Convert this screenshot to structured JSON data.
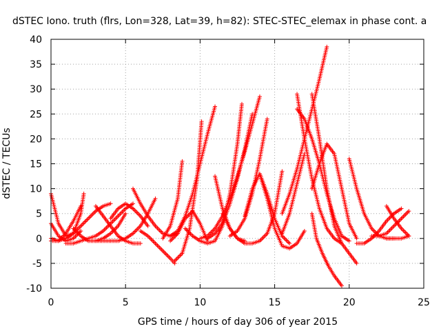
{
  "chart_data": {
    "type": "scatter",
    "title": "dSTEC Iono. truth (flrs, Lon=328, Lat=39, h=82): STEC-STEC_elemax in phase cont. a",
    "xlabel": "GPS time / hours of day 306 of year 2015",
    "ylabel": "dSTEC  / TECUs",
    "xlim": [
      0,
      25
    ],
    "ylim": [
      -10,
      40
    ],
    "xticks": [
      0,
      5,
      10,
      15,
      20,
      25
    ],
    "yticks": [
      -10,
      -5,
      0,
      5,
      10,
      15,
      20,
      25,
      30,
      35,
      40
    ],
    "grid": true,
    "marker": "+",
    "color": "#ff0000",
    "series": [
      {
        "x": [
          0.0,
          0.5,
          1.0,
          1.5,
          2.0,
          2.2
        ],
        "y": [
          9.0,
          3.0,
          0.5,
          1.0,
          5.0,
          9.0
        ]
      },
      {
        "x": [
          0.0,
          0.5,
          1.0,
          1.5,
          2.0
        ],
        "y": [
          3.0,
          0.5,
          -0.5,
          0.0,
          1.5
        ]
      },
      {
        "x": [
          0.0,
          0.5,
          1.0,
          1.5,
          2.0
        ],
        "y": [
          0.0,
          -0.5,
          1.0,
          3.5,
          6.5
        ]
      },
      {
        "x": [
          0.0,
          0.5,
          1.0,
          1.5,
          2.0,
          2.5,
          3.0,
          3.5,
          4.0
        ],
        "y": [
          -0.5,
          -0.5,
          0.0,
          1.0,
          2.5,
          4.0,
          5.5,
          6.5,
          7.0
        ]
      },
      {
        "x": [
          1.0,
          1.5,
          2.0,
          2.5,
          3.0,
          3.5,
          4.0,
          4.5,
          5.0,
          5.5
        ],
        "y": [
          -1.0,
          -1.0,
          -0.5,
          0.0,
          0.5,
          1.5,
          3.0,
          4.5,
          6.0,
          7.0
        ]
      },
      {
        "x": [
          1.5,
          2.0,
          2.5,
          3.0,
          3.5,
          4.0,
          4.5,
          5.0
        ],
        "y": [
          2.0,
          0.5,
          -0.5,
          -0.5,
          0.0,
          1.0,
          2.5,
          5.0
        ]
      },
      {
        "x": [
          3.0,
          3.5,
          4.0,
          4.5,
          5.0,
          5.5,
          6.0
        ],
        "y": [
          6.5,
          4.5,
          2.5,
          0.5,
          -0.5,
          -1.0,
          -1.0
        ]
      },
      {
        "x": [
          3.0,
          3.5,
          4.0,
          4.5,
          5.0,
          5.5,
          6.0,
          6.5,
          7.0
        ],
        "y": [
          -0.5,
          -0.5,
          -0.5,
          -0.5,
          0.0,
          1.0,
          2.5,
          5.0,
          8.0
        ]
      },
      {
        "x": [
          4.0,
          4.5,
          5.0,
          5.5,
          6.0,
          6.5
        ],
        "y": [
          4.0,
          6.0,
          7.0,
          6.0,
          4.5,
          2.5
        ]
      },
      {
        "x": [
          5.5,
          6.0,
          6.5,
          7.0,
          7.5,
          8.0,
          8.5
        ],
        "y": [
          10.0,
          7.0,
          4.5,
          2.5,
          1.0,
          0.5,
          1.0
        ]
      },
      {
        "x": [
          6.0,
          6.5,
          7.0,
          7.5,
          8.0,
          8.3
        ],
        "y": [
          1.5,
          0.5,
          -1.0,
          -2.5,
          -4.0,
          -5.0
        ]
      },
      {
        "x": [
          7.5,
          8.0,
          8.5,
          8.8
        ],
        "y": [
          0.0,
          2.5,
          8.0,
          15.5
        ]
      },
      {
        "x": [
          8.3,
          8.8,
          9.3,
          9.8,
          10.1
        ],
        "y": [
          -4.5,
          -3.0,
          2.0,
          12.0,
          23.5
        ]
      },
      {
        "x": [
          8.0,
          8.5,
          9.0,
          9.5,
          10.0,
          10.5,
          11.0
        ],
        "y": [
          0.5,
          1.5,
          4.5,
          9.0,
          15.0,
          21.0,
          26.5
        ]
      },
      {
        "x": [
          8.0,
          8.5,
          9.0,
          9.5,
          10.0,
          10.5
        ],
        "y": [
          -0.5,
          1.0,
          4.0,
          5.5,
          3.0,
          -0.5
        ]
      },
      {
        "x": [
          9.0,
          9.5,
          10.0,
          10.5,
          11.0,
          11.5,
          12.0,
          12.5,
          12.8
        ],
        "y": [
          2.0,
          0.5,
          -0.5,
          -1.0,
          -0.5,
          2.5,
          9.0,
          19.0,
          27.0
        ]
      },
      {
        "x": [
          10.0,
          10.5,
          11.0,
          11.5,
          12.0,
          12.5,
          13.0,
          13.5,
          14.0
        ],
        "y": [
          0.0,
          0.5,
          2.0,
          4.5,
          8.0,
          12.5,
          17.5,
          23.0,
          28.5
        ]
      },
      {
        "x": [
          11.0,
          11.5,
          12.0,
          12.5,
          13.0
        ],
        "y": [
          12.5,
          6.0,
          2.0,
          0.0,
          -0.5
        ]
      },
      {
        "x": [
          10.5,
          11.0,
          11.5,
          12.0,
          12.5,
          13.0,
          13.5
        ],
        "y": [
          0.0,
          1.0,
          3.0,
          7.0,
          12.0,
          18.0,
          25.0
        ]
      },
      {
        "x": [
          11.5,
          12.0,
          12.5,
          13.0,
          13.5,
          14.0,
          14.5,
          15.0,
          15.5
        ],
        "y": [
          5.0,
          2.0,
          0.0,
          -1.0,
          -1.0,
          -0.5,
          1.0,
          5.0,
          13.5
        ]
      },
      {
        "x": [
          12.0,
          12.5,
          13.0,
          13.5,
          14.0,
          14.5
        ],
        "y": [
          0.5,
          1.5,
          4.0,
          9.0,
          16.0,
          24.0
        ]
      },
      {
        "x": [
          13.0,
          13.5,
          14.0,
          14.5,
          15.0,
          15.5,
          16.0
        ],
        "y": [
          4.5,
          10.0,
          13.0,
          9.0,
          4.0,
          0.5,
          -1.0
        ]
      },
      {
        "x": [
          14.0,
          14.5,
          15.0,
          15.5,
          16.0,
          16.5,
          17.0
        ],
        "y": [
          13.0,
          8.0,
          2.0,
          -1.5,
          -2.0,
          -1.0,
          1.5
        ]
      },
      {
        "x": [
          15.5,
          16.0,
          16.5,
          17.0
        ],
        "y": [
          1.0,
          5.0,
          11.0,
          17.0
        ]
      },
      {
        "x": [
          15.5,
          16.0,
          16.5,
          17.0,
          17.5,
          18.0,
          18.5
        ],
        "y": [
          5.0,
          9.0,
          14.0,
          20.0,
          26.0,
          32.0,
          38.5
        ]
      },
      {
        "x": [
          16.5,
          17.0,
          17.5,
          18.0,
          18.5,
          19.0,
          19.5
        ],
        "y": [
          29.0,
          20.0,
          12.0,
          6.0,
          2.0,
          0.0,
          -1.0
        ]
      },
      {
        "x": [
          16.5,
          17.0,
          17.5,
          18.0,
          18.5,
          19.0,
          19.5,
          20.0
        ],
        "y": [
          26.0,
          24.0,
          20.0,
          15.0,
          9.0,
          4.0,
          0.5,
          -0.5
        ]
      },
      {
        "x": [
          17.5,
          18.0,
          18.5,
          19.0,
          19.5,
          20.0,
          20.5
        ],
        "y": [
          29.0,
          20.0,
          10.0,
          2.5,
          -1.0,
          -3.0,
          -5.0
        ]
      },
      {
        "x": [
          17.5,
          17.8,
          18.2,
          18.6,
          19.0,
          19.5
        ],
        "y": [
          5.0,
          0.0,
          -3.0,
          -5.5,
          -7.5,
          -9.5
        ]
      },
      {
        "x": [
          17.5,
          18.0,
          18.5,
          19.0,
          19.5,
          20.0,
          20.5
        ],
        "y": [
          10.0,
          15.0,
          19.0,
          17.0,
          10.0,
          3.0,
          0.0
        ]
      },
      {
        "x": [
          20.0,
          20.5,
          21.0,
          21.5,
          22.0,
          22.5,
          23.0
        ],
        "y": [
          16.0,
          10.0,
          5.0,
          2.0,
          0.5,
          0.0,
          0.0
        ]
      },
      {
        "x": [
          20.5,
          21.0,
          21.5,
          22.0,
          22.5,
          23.0,
          23.5
        ],
        "y": [
          -1.0,
          -1.0,
          0.0,
          1.5,
          3.5,
          5.0,
          6.0
        ]
      },
      {
        "x": [
          21.5,
          22.0,
          22.5,
          23.0,
          23.5,
          24.0
        ],
        "y": [
          0.5,
          0.5,
          1.0,
          2.5,
          4.0,
          5.5
        ]
      },
      {
        "x": [
          22.5,
          23.0,
          23.5,
          24.0
        ],
        "y": [
          6.5,
          4.0,
          2.0,
          0.5
        ]
      },
      {
        "x": [
          22.5,
          23.0,
          23.5,
          24.0
        ],
        "y": [
          0.0,
          0.0,
          0.0,
          0.5
        ]
      }
    ]
  }
}
